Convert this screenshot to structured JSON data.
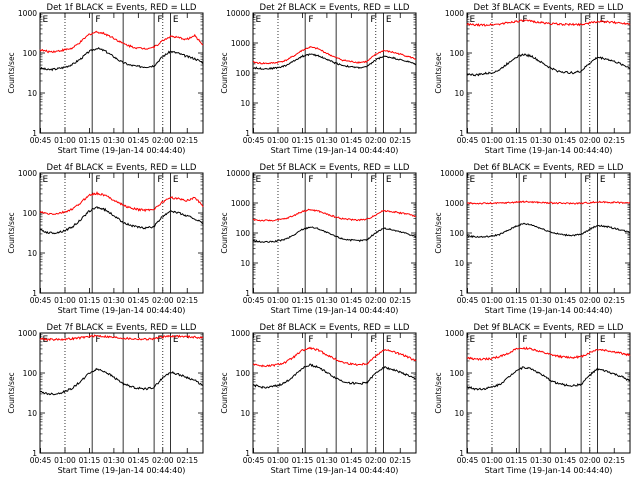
{
  "colors": {
    "events": "#000000",
    "lld": "#ff0000",
    "axis": "#000000",
    "background": "#ffffff"
  },
  "common": {
    "xlabel": "Start Time (19-Jan-14 00:44:40)",
    "ylabel": "Counts/sec",
    "x_ticks": [
      "00:45",
      "01:00",
      "01:15",
      "01:30",
      "01:45",
      "02:00",
      "02:15"
    ],
    "y_ticks": [
      "1",
      "10",
      "100",
      "1000",
      "10000"
    ],
    "region_markers": [
      "E",
      "F",
      "F",
      "E"
    ]
  },
  "chart_data": [
    {
      "type": "line",
      "title": "Det 1f BLACK = Events, RED = LLD",
      "x_minutes": [
        0,
        5,
        10,
        15,
        20,
        25,
        30,
        35,
        40,
        45,
        50,
        55,
        60,
        65,
        70,
        75,
        80,
        85,
        90,
        95,
        100
      ],
      "ylim": [
        1,
        1000
      ],
      "y_scale": "log",
      "series": [
        {
          "name": "Events",
          "values": [
            42,
            38,
            40,
            44,
            52,
            72,
            108,
            132,
            112,
            82,
            60,
            50,
            46,
            45,
            48,
            80,
            110,
            98,
            82,
            72,
            58
          ]
        },
        {
          "name": "LLD",
          "values": [
            120,
            108,
            110,
            120,
            132,
            190,
            290,
            340,
            300,
            240,
            180,
            150,
            132,
            130,
            140,
            200,
            260,
            240,
            220,
            270,
            160
          ]
        }
      ]
    },
    {
      "type": "line",
      "title": "Det 2f BLACK = Events, RED = LLD",
      "x_minutes": [
        0,
        5,
        10,
        15,
        20,
        25,
        30,
        35,
        40,
        45,
        50,
        55,
        60,
        65,
        70,
        75,
        80,
        85,
        90,
        95,
        100
      ],
      "ylim": [
        1,
        10000
      ],
      "y_scale": "log",
      "series": [
        {
          "name": "Events",
          "values": [
            150,
            140,
            140,
            150,
            175,
            250,
            360,
            420,
            380,
            290,
            220,
            180,
            160,
            150,
            160,
            270,
            360,
            330,
            280,
            240,
            195
          ]
        },
        {
          "name": "LLD",
          "values": [
            230,
            210,
            210,
            225,
            260,
            370,
            560,
            730,
            640,
            460,
            340,
            270,
            240,
            225,
            240,
            410,
            560,
            500,
            430,
            360,
            290
          ]
        }
      ]
    },
    {
      "type": "line",
      "title": "Det 3f BLACK = Events, RED = LLD",
      "x_minutes": [
        0,
        5,
        10,
        15,
        20,
        25,
        30,
        35,
        40,
        45,
        50,
        55,
        60,
        65,
        70,
        75,
        80,
        85,
        90,
        95,
        100
      ],
      "ylim": [
        1,
        1000
      ],
      "y_scale": "log",
      "series": [
        {
          "name": "Events",
          "values": [
            30,
            28,
            30,
            32,
            38,
            55,
            80,
            92,
            82,
            60,
            45,
            36,
            33,
            32,
            35,
            55,
            78,
            72,
            62,
            52,
            42
          ]
        },
        {
          "name": "LLD",
          "values": [
            520,
            500,
            500,
            510,
            530,
            570,
            620,
            640,
            620,
            580,
            550,
            530,
            520,
            515,
            520,
            560,
            610,
            600,
            580,
            560,
            540
          ]
        }
      ]
    },
    {
      "type": "line",
      "title": "Det 4f BLACK = Events, RED = LLD",
      "x_minutes": [
        0,
        5,
        10,
        15,
        20,
        25,
        30,
        35,
        40,
        45,
        50,
        55,
        60,
        65,
        70,
        75,
        80,
        85,
        90,
        95,
        100
      ],
      "ylim": [
        1,
        1000
      ],
      "y_scale": "log",
      "series": [
        {
          "name": "Events",
          "values": [
            38,
            32,
            32,
            36,
            45,
            68,
            110,
            140,
            120,
            88,
            62,
            50,
            44,
            42,
            46,
            80,
            115,
            100,
            85,
            72,
            55
          ]
        },
        {
          "name": "LLD",
          "values": [
            105,
            95,
            95,
            105,
            125,
            180,
            280,
            310,
            275,
            215,
            165,
            135,
            122,
            118,
            125,
            185,
            245,
            225,
            205,
            245,
            150
          ]
        }
      ]
    },
    {
      "type": "line",
      "title": "Det 5f BLACK = Events, RED = LLD",
      "x_minutes": [
        0,
        5,
        10,
        15,
        20,
        25,
        30,
        35,
        40,
        45,
        50,
        55,
        60,
        65,
        70,
        75,
        80,
        85,
        90,
        95,
        100
      ],
      "ylim": [
        1,
        10000
      ],
      "y_scale": "log",
      "series": [
        {
          "name": "Events",
          "values": [
            55,
            50,
            50,
            54,
            62,
            85,
            130,
            160,
            140,
            105,
            80,
            64,
            58,
            55,
            60,
            100,
            145,
            130,
            110,
            95,
            75
          ]
        },
        {
          "name": "LLD",
          "values": [
            280,
            260,
            260,
            270,
            300,
            380,
            520,
            600,
            540,
            430,
            350,
            300,
            280,
            270,
            285,
            400,
            560,
            520,
            470,
            430,
            350
          ]
        }
      ]
    },
    {
      "type": "line",
      "title": "Det 6f BLACK = Events, RED = LLD",
      "x_minutes": [
        0,
        5,
        10,
        15,
        20,
        25,
        30,
        35,
        40,
        45,
        50,
        55,
        60,
        65,
        70,
        75,
        80,
        85,
        90,
        95,
        100
      ],
      "ylim": [
        1,
        10000
      ],
      "y_scale": "log",
      "series": [
        {
          "name": "Events",
          "values": [
            80,
            75,
            74,
            78,
            90,
            120,
            170,
            205,
            185,
            145,
            115,
            95,
            86,
            84,
            88,
            130,
            180,
            165,
            145,
            125,
            105
          ]
        },
        {
          "name": "LLD",
          "values": [
            980,
            970,
            970,
            975,
            990,
            1020,
            1070,
            1100,
            1080,
            1040,
            1010,
            990,
            980,
            975,
            980,
            1030,
            1080,
            1070,
            1050,
            1030,
            1000
          ]
        }
      ]
    },
    {
      "type": "line",
      "title": "Det 7f BLACK = Events, RED = LLD",
      "x_minutes": [
        0,
        5,
        10,
        15,
        20,
        25,
        30,
        35,
        40,
        45,
        50,
        55,
        60,
        65,
        70,
        75,
        80,
        85,
        90,
        95,
        100
      ],
      "ylim": [
        1,
        1000
      ],
      "y_scale": "log",
      "series": [
        {
          "name": "Events",
          "values": [
            34,
            30,
            30,
            34,
            42,
            62,
            98,
            125,
            108,
            80,
            58,
            46,
            42,
            40,
            44,
            74,
            105,
            92,
            78,
            65,
            48
          ]
        },
        {
          "name": "LLD",
          "values": [
            720,
            690,
            690,
            700,
            720,
            760,
            820,
            850,
            820,
            780,
            750,
            720,
            710,
            700,
            720,
            790,
            840,
            830,
            810,
            790,
            760
          ]
        }
      ]
    },
    {
      "type": "line",
      "title": "Det 8f BLACK = Events, RED = LLD",
      "x_minutes": [
        0,
        5,
        10,
        15,
        20,
        25,
        30,
        35,
        40,
        45,
        50,
        55,
        60,
        65,
        70,
        75,
        80,
        85,
        90,
        95,
        100
      ],
      "ylim": [
        1,
        1000
      ],
      "y_scale": "log",
      "series": [
        {
          "name": "Events",
          "values": [
            50,
            44,
            44,
            48,
            58,
            85,
            130,
            160,
            140,
            105,
            78,
            62,
            56,
            54,
            58,
            96,
            140,
            125,
            105,
            88,
            68
          ]
        },
        {
          "name": "LLD",
          "values": [
            170,
            150,
            150,
            162,
            185,
            250,
            360,
            420,
            370,
            290,
            225,
            185,
            168,
            162,
            172,
            260,
            380,
            350,
            300,
            250,
            200
          ]
        }
      ]
    },
    {
      "type": "line",
      "title": "Det 9f BLACK = Events, RED = LLD",
      "x_minutes": [
        0,
        5,
        10,
        15,
        20,
        25,
        30,
        35,
        40,
        45,
        50,
        55,
        60,
        65,
        70,
        75,
        80,
        85,
        90,
        95,
        100
      ],
      "ylim": [
        1,
        1000
      ],
      "y_scale": "log",
      "series": [
        {
          "name": "Events",
          "values": [
            45,
            40,
            40,
            44,
            52,
            75,
            115,
            140,
            125,
            95,
            70,
            56,
            50,
            48,
            52,
            86,
            125,
            112,
            95,
            80,
            62
          ]
        },
        {
          "name": "LLD",
          "values": [
            240,
            220,
            220,
            230,
            255,
            310,
            390,
            420,
            395,
            340,
            295,
            265,
            250,
            245,
            255,
            320,
            390,
            370,
            340,
            310,
            275
          ]
        }
      ]
    }
  ]
}
